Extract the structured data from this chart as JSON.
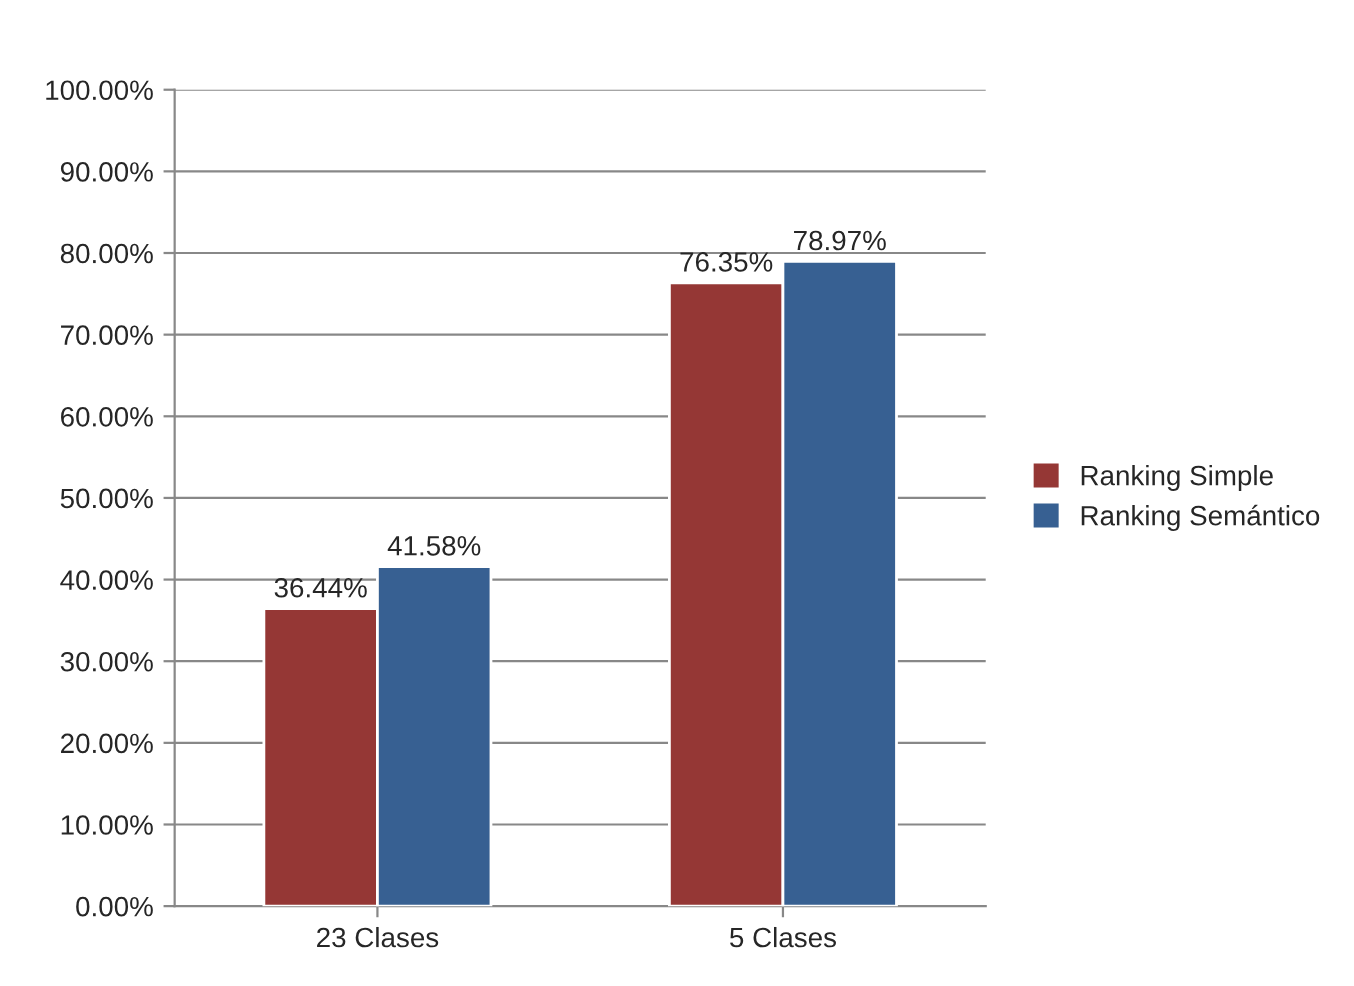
{
  "chart_data": {
    "type": "bar",
    "categories": [
      "23 Clases",
      "5 Clases"
    ],
    "series": [
      {
        "name": "Ranking Simple",
        "color": "#953735",
        "values": [
          36.44,
          76.35
        ],
        "value_labels": [
          "36.44%",
          "76.35%"
        ]
      },
      {
        "name": "Ranking Semántico",
        "color": "#376092",
        "values": [
          41.58,
          78.97
        ],
        "value_labels": [
          "41.58%",
          "78.97%"
        ]
      }
    ],
    "ylim": [
      0,
      100
    ],
    "yticks": [
      {
        "value": 0,
        "label": "0.00%"
      },
      {
        "value": 10,
        "label": "10.00%"
      },
      {
        "value": 20,
        "label": "20.00%"
      },
      {
        "value": 30,
        "label": "30.00%"
      },
      {
        "value": 40,
        "label": "40.00%"
      },
      {
        "value": 50,
        "label": "50.00%"
      },
      {
        "value": 60,
        "label": "60.00%"
      },
      {
        "value": 70,
        "label": "70.00%"
      },
      {
        "value": 80,
        "label": "80.00%"
      },
      {
        "value": 90,
        "label": "90.00%"
      },
      {
        "value": 100,
        "label": "100.00%"
      }
    ],
    "grid": "y",
    "legend": "right"
  }
}
